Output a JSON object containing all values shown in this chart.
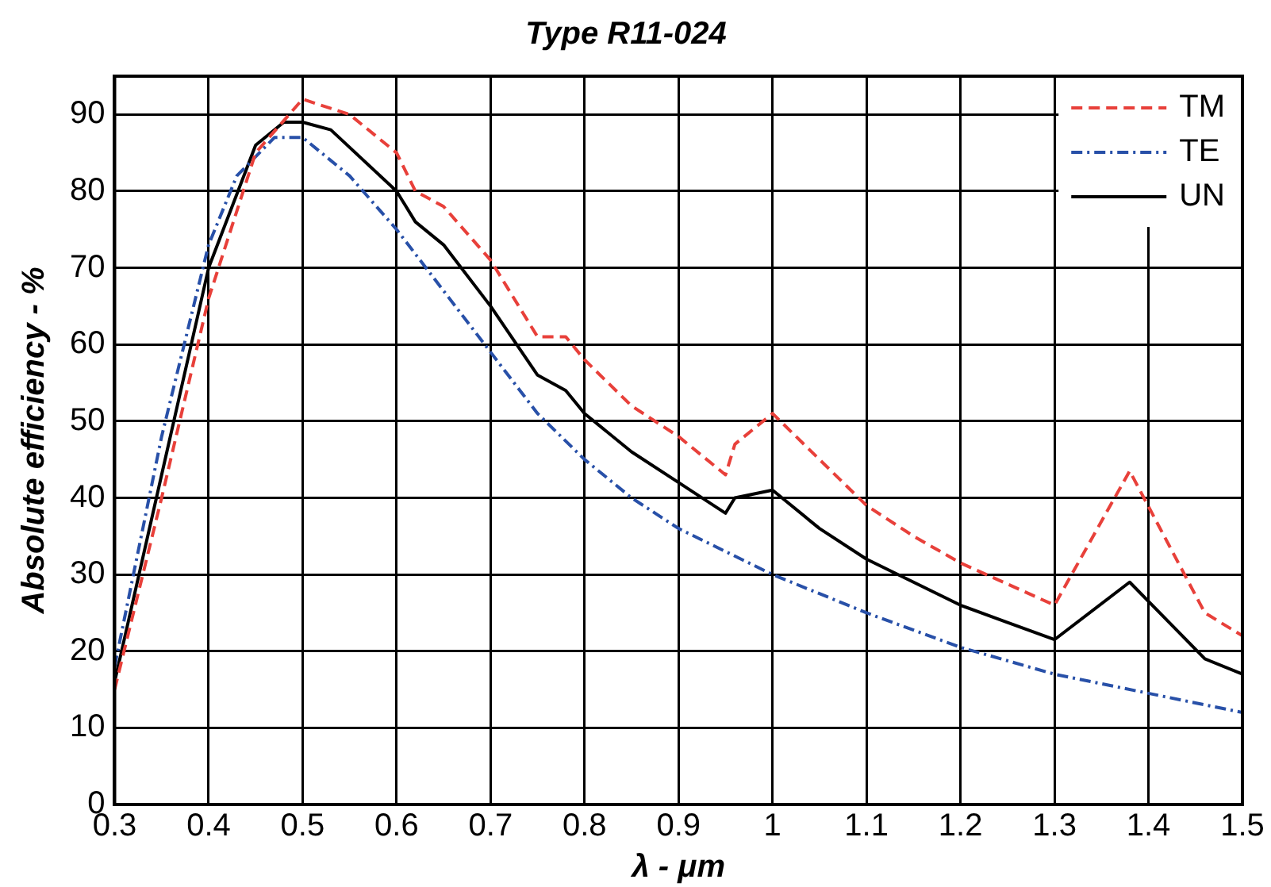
{
  "chart_data": {
    "type": "line",
    "title": "Type R11-024",
    "xlabel": "λ - μm",
    "ylabel": "Absolute efficiency - %",
    "xlim": [
      0.3,
      1.5
    ],
    "xticks": [
      0.3,
      0.4,
      0.5,
      0.6,
      0.7,
      0.8,
      0.9,
      1,
      1.1,
      1.2,
      1.3,
      1.4,
      1.5
    ],
    "ylim": [
      0,
      95
    ],
    "yticks": [
      0,
      10,
      20,
      30,
      40,
      50,
      60,
      70,
      80,
      90
    ],
    "grid": true,
    "legend": "top right",
    "marker": "none",
    "series": [
      {
        "name": "TM",
        "color": "#e8403a",
        "line_style": "dashed",
        "x": [
          0.3,
          0.35,
          0.4,
          0.45,
          0.5,
          0.55,
          0.6,
          0.62,
          0.65,
          0.7,
          0.75,
          0.78,
          0.8,
          0.85,
          0.9,
          0.95,
          0.96,
          1.0,
          1.05,
          1.1,
          1.15,
          1.2,
          1.3,
          1.38,
          1.46,
          1.5
        ],
        "values": [
          15,
          40,
          66,
          85,
          92,
          90,
          85,
          80,
          78,
          71,
          61,
          61,
          58,
          52,
          48,
          43,
          47,
          51,
          45,
          39,
          35,
          31.5,
          26,
          43.5,
          25,
          22
        ]
      },
      {
        "name": "TE",
        "color": "#2850a8",
        "line_style": "dotted",
        "x": [
          0.3,
          0.35,
          0.4,
          0.43,
          0.47,
          0.5,
          0.55,
          0.6,
          0.65,
          0.7,
          0.75,
          0.8,
          0.85,
          0.9,
          0.95,
          1.0,
          1.1,
          1.2,
          1.3,
          1.4,
          1.5
        ],
        "values": [
          18,
          48,
          73,
          82,
          87,
          87,
          82,
          75,
          67,
          59,
          51,
          45,
          40,
          36,
          33,
          30,
          25,
          20.5,
          17,
          14.5,
          12
        ]
      },
      {
        "name": "UN",
        "color": "#000000",
        "line_style": "solid",
        "x": [
          0.3,
          0.35,
          0.4,
          0.45,
          0.48,
          0.5,
          0.53,
          0.6,
          0.62,
          0.65,
          0.7,
          0.75,
          0.78,
          0.8,
          0.85,
          0.9,
          0.95,
          0.96,
          1.0,
          1.05,
          1.1,
          1.2,
          1.3,
          1.38,
          1.46,
          1.5
        ],
        "values": [
          16,
          43,
          70,
          86,
          89,
          89,
          88,
          80,
          76,
          73,
          65,
          56,
          54,
          51,
          46,
          42,
          38,
          40,
          41,
          36,
          32,
          26,
          21.5,
          29,
          19,
          17
        ]
      }
    ]
  }
}
